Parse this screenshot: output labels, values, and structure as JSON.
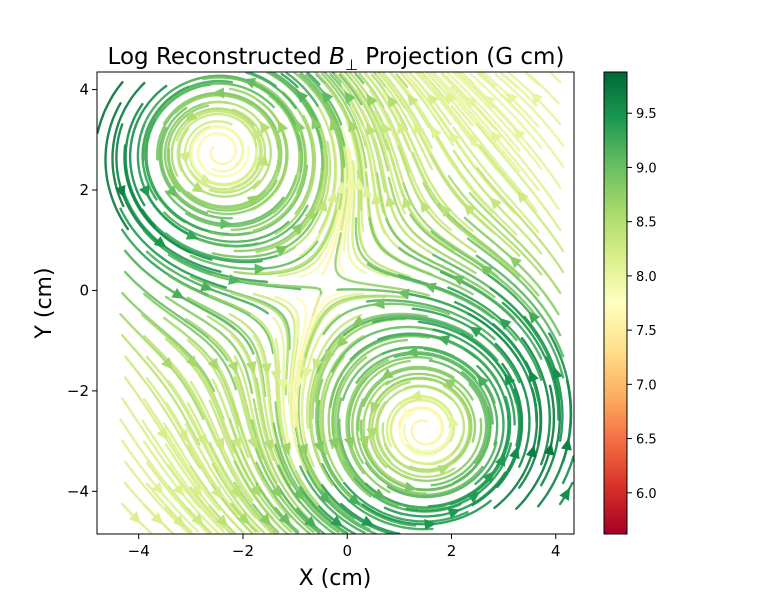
{
  "chart_data": {
    "type": "streamplot",
    "title_main": "Log Reconstructed ",
    "title_symbol": "B",
    "title_subscript": "⊥",
    "title_tail": " Projection (G cm)",
    "xlabel": "X (cm)",
    "ylabel": "Y (cm)",
    "xlim": [
      -4.8,
      4.35
    ],
    "ylim": [
      -4.85,
      4.35
    ],
    "xticks": [
      -4,
      -2,
      0,
      2,
      4
    ],
    "yticks": [
      -4,
      -2,
      0,
      2,
      4
    ],
    "xtick_labels": [
      "−4",
      "−2",
      "0",
      "2",
      "4"
    ],
    "ytick_labels": [
      "−4",
      "−2",
      "0",
      "2",
      "4"
    ],
    "grid": false,
    "colormap": "RdYlGn",
    "colormap_stops": [
      "#a50026",
      "#d73027",
      "#f46d43",
      "#fdae61",
      "#fee08b",
      "#ffffbf",
      "#d9ef8b",
      "#a6d96a",
      "#66bd63",
      "#1a9850",
      "#006837"
    ],
    "colorbar": {
      "range": [
        5.62,
        9.88
      ],
      "ticks": [
        6.0,
        6.5,
        7.0,
        7.5,
        8.0,
        8.5,
        9.0,
        9.5
      ],
      "tick_labels": [
        "6.0",
        "6.5",
        "7.0",
        "7.5",
        "8.0",
        "8.5",
        "9.0",
        "9.5"
      ]
    },
    "vortices": [
      {
        "center": [
          -2.65,
          3.0
        ],
        "rotation": "counterclockwise",
        "peak_log_value": 9.7
      },
      {
        "center": [
          1.6,
          -3.0
        ],
        "rotation": "counterclockwise",
        "peak_log_value": 9.7
      }
    ],
    "corner_values": [
      {
        "position": [
          4.05,
          4.05
        ],
        "log_value": 7.0
      },
      {
        "position": [
          -4.1,
          -3.95
        ],
        "log_value": 7.0
      }
    ]
  }
}
